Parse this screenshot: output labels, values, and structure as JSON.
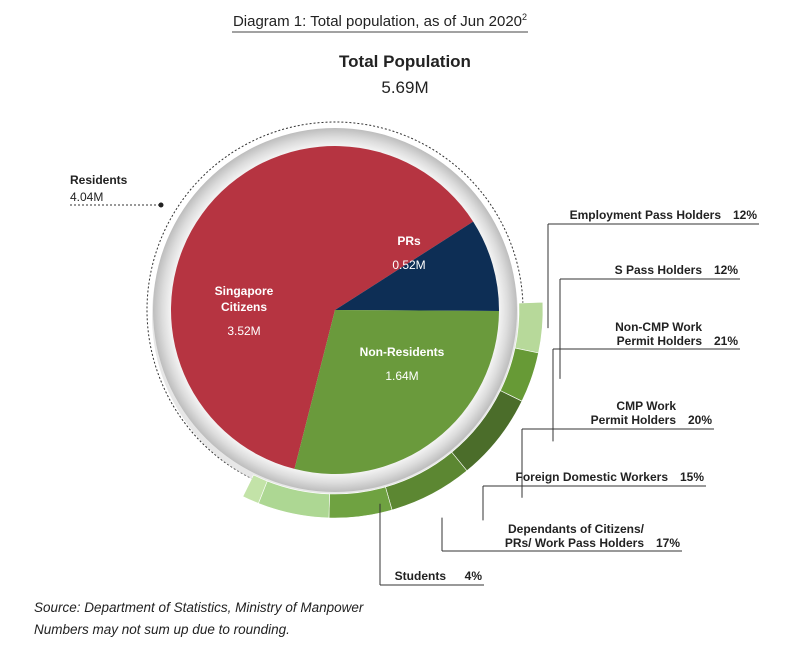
{
  "chart_data": {
    "type": "pie",
    "title": "Diagram 1: Total population, as of Jun 2020",
    "title_footnote": "2",
    "total": {
      "label": "Total Population",
      "value": "5.69M",
      "value_num": 5.69
    },
    "residents": {
      "label": "Residents",
      "value": "4.04M",
      "value_num": 4.04
    },
    "pie_slices": [
      {
        "name": "Singapore Citizens",
        "lines": [
          "Singapore",
          "Citizens"
        ],
        "value": 3.52,
        "value_label": "3.52M",
        "color": "#b63441"
      },
      {
        "name": "PRs",
        "lines": [
          "PRs"
        ],
        "value": 0.52,
        "value_label": "0.52M",
        "color": "#0d2e55"
      },
      {
        "name": "Non-Residents",
        "lines": [
          "Non-Residents"
        ],
        "value": 1.64,
        "value_label": "1.64M",
        "color": "#6a9a3c"
      }
    ],
    "non_resident_breakdown": [
      {
        "lines": [
          "Employment Pass Holders"
        ],
        "percent": 12,
        "percent_label": "12%",
        "color": "#b7d99a"
      },
      {
        "lines": [
          "S Pass Holders"
        ],
        "percent": 12,
        "percent_label": "12%",
        "color": "#679a36"
      },
      {
        "lines": [
          "Non-CMP Work",
          "Permit Holders"
        ],
        "percent": 21,
        "percent_label": "21%",
        "color": "#4b6d2a"
      },
      {
        "lines": [
          "CMP Work",
          "Permit Holders"
        ],
        "percent": 20,
        "percent_label": "20%",
        "color": "#5c8732"
      },
      {
        "lines": [
          "Foreign Domestic Workers"
        ],
        "percent": 15,
        "percent_label": "15%",
        "color": "#6fa241"
      },
      {
        "lines": [
          "Dependants of Citizens/",
          "PRs/ Work Pass Holders"
        ],
        "percent": 17,
        "percent_label": "17%",
        "color": "#add793"
      },
      {
        "lines": [
          "Students"
        ],
        "percent": 4,
        "percent_label": "4%",
        "color": "#c3e3a8"
      }
    ]
  },
  "source": {
    "line1": "Source: Department of Statistics, Ministry of Manpower",
    "line2": "Numbers may not sum up due to rounding."
  }
}
